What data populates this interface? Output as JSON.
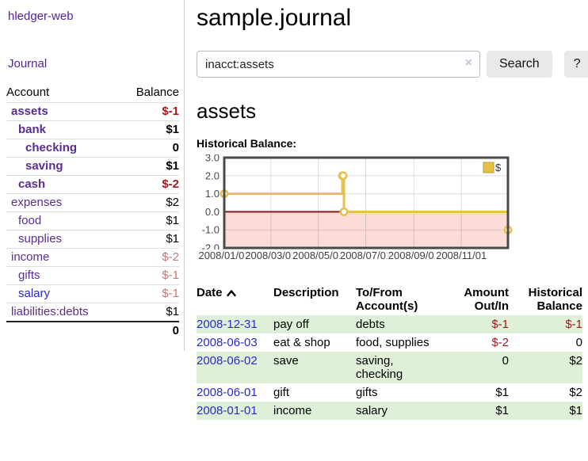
{
  "brand": "hledger-web",
  "nav": {
    "journal": "Journal"
  },
  "sidebar": {
    "header": {
      "account": "Account",
      "balance": "Balance"
    },
    "rows": [
      {
        "name": "assets",
        "balance": "$-1",
        "depth": 1,
        "bold": true,
        "name_style": "purple",
        "balance_style": "neg-strong"
      },
      {
        "name": "bank",
        "balance": "$1",
        "depth": 2,
        "bold": true,
        "name_style": "purple",
        "balance_style": "plain"
      },
      {
        "name": "checking",
        "balance": "0",
        "depth": 3,
        "bold": true,
        "name_style": "purple",
        "balance_style": "plain"
      },
      {
        "name": "saving",
        "balance": "$1",
        "depth": 3,
        "bold": true,
        "name_style": "purple",
        "balance_style": "plain"
      },
      {
        "name": "cash",
        "balance": "$-2",
        "depth": 2,
        "bold": true,
        "name_style": "purple",
        "balance_style": "neg-strong"
      },
      {
        "name": "expenses",
        "balance": "$2",
        "depth": 1,
        "bold": false,
        "name_style": "purple",
        "balance_style": "plain"
      },
      {
        "name": "food",
        "balance": "$1",
        "depth": 2,
        "bold": false,
        "name_style": "purple",
        "balance_style": "plain"
      },
      {
        "name": "supplies",
        "balance": "$1",
        "depth": 2,
        "bold": false,
        "name_style": "purple",
        "balance_style": "plain"
      },
      {
        "name": "income",
        "balance": "$-2",
        "depth": 1,
        "bold": false,
        "name_style": "purple",
        "balance_style": "neg-weak"
      },
      {
        "name": "gifts",
        "balance": "$-1",
        "depth": 2,
        "bold": false,
        "name_style": "purple",
        "balance_style": "neg-weak"
      },
      {
        "name": "salary",
        "balance": "$-1",
        "depth": 2,
        "bold": false,
        "name_style": "blue",
        "balance_style": "neg-weak"
      },
      {
        "name": "liabilities:debts",
        "balance": "$1",
        "depth": 1,
        "bold": false,
        "name_style": "purple",
        "balance_style": "plain"
      }
    ],
    "total": "0"
  },
  "header": {
    "title": "sample.journal"
  },
  "search": {
    "value": "inacct:assets",
    "clear_icon": "×",
    "search_button": "Search",
    "help_button": "?"
  },
  "register": {
    "heading": "assets",
    "chart_title": "Historical Balance:",
    "table": {
      "headers": [
        "Date",
        "Description",
        "To/From Account(s)",
        "Amount Out/In",
        "Historical Balance"
      ],
      "rows": [
        {
          "date": "2008-12-31",
          "description": "pay off",
          "accounts": "debts",
          "amount": "$-1",
          "amount_style": "neg",
          "balance": "$-1",
          "balance_style": "neg"
        },
        {
          "date": "2008-06-03",
          "description": "eat & shop",
          "accounts": "food, supplies",
          "amount": "$-2",
          "amount_style": "neg",
          "balance": "0",
          "balance_style": "plain"
        },
        {
          "date": "2008-06-02",
          "description": "save",
          "accounts": "saving, checking",
          "amount": "0",
          "amount_style": "plain",
          "balance": "$2",
          "balance_style": "plain"
        },
        {
          "date": "2008-06-01",
          "description": "gift",
          "accounts": "gifts",
          "amount": "$1",
          "amount_style": "plain",
          "balance": "$2",
          "balance_style": "plain"
        },
        {
          "date": "2008-01-01",
          "description": "income",
          "accounts": "salary",
          "amount": "$1",
          "amount_style": "plain",
          "balance": "$1",
          "balance_style": "plain"
        }
      ]
    }
  },
  "chart_data": {
    "type": "line",
    "title": "Historical Balance:",
    "step": "after",
    "legend": [
      {
        "label": "$",
        "color": "#e7c04a"
      }
    ],
    "points": [
      {
        "date": "2008-01-01",
        "day": 0,
        "value": 1
      },
      {
        "date": "2008-06-01",
        "day": 152,
        "value": 2
      },
      {
        "date": "2008-06-02",
        "day": 153,
        "value": 2
      },
      {
        "date": "2008-06-03",
        "day": 154,
        "value": 0
      },
      {
        "date": "2008-12-31",
        "day": 365,
        "value": -1
      }
    ],
    "x_total_days": 365,
    "xticks": [
      {
        "day": 0,
        "label": "2008/01/01"
      },
      {
        "day": 60,
        "label": "2008/03/01"
      },
      {
        "day": 121,
        "label": "2008/05/01"
      },
      {
        "day": 182,
        "label": "2008/07/01"
      },
      {
        "day": 244,
        "label": "2008/09/01"
      },
      {
        "day": 305,
        "label": "2008/11/01"
      }
    ],
    "yticks": [
      "3.0",
      "2.0",
      "1.0",
      "0.0",
      "-1.0",
      "-2.0"
    ],
    "ylim": [
      -2,
      3
    ],
    "grid": true,
    "legend_position": "top-right",
    "colors": {
      "line": "#e7c04a",
      "marker_fill": "#ffffff",
      "negative_fill": "#fcdcd9",
      "zero_line": "#8c1717",
      "border": "#4a4a4a",
      "grid": "rgba(0,0,0,0.13)",
      "axis_text": "#4a4a4a"
    }
  }
}
